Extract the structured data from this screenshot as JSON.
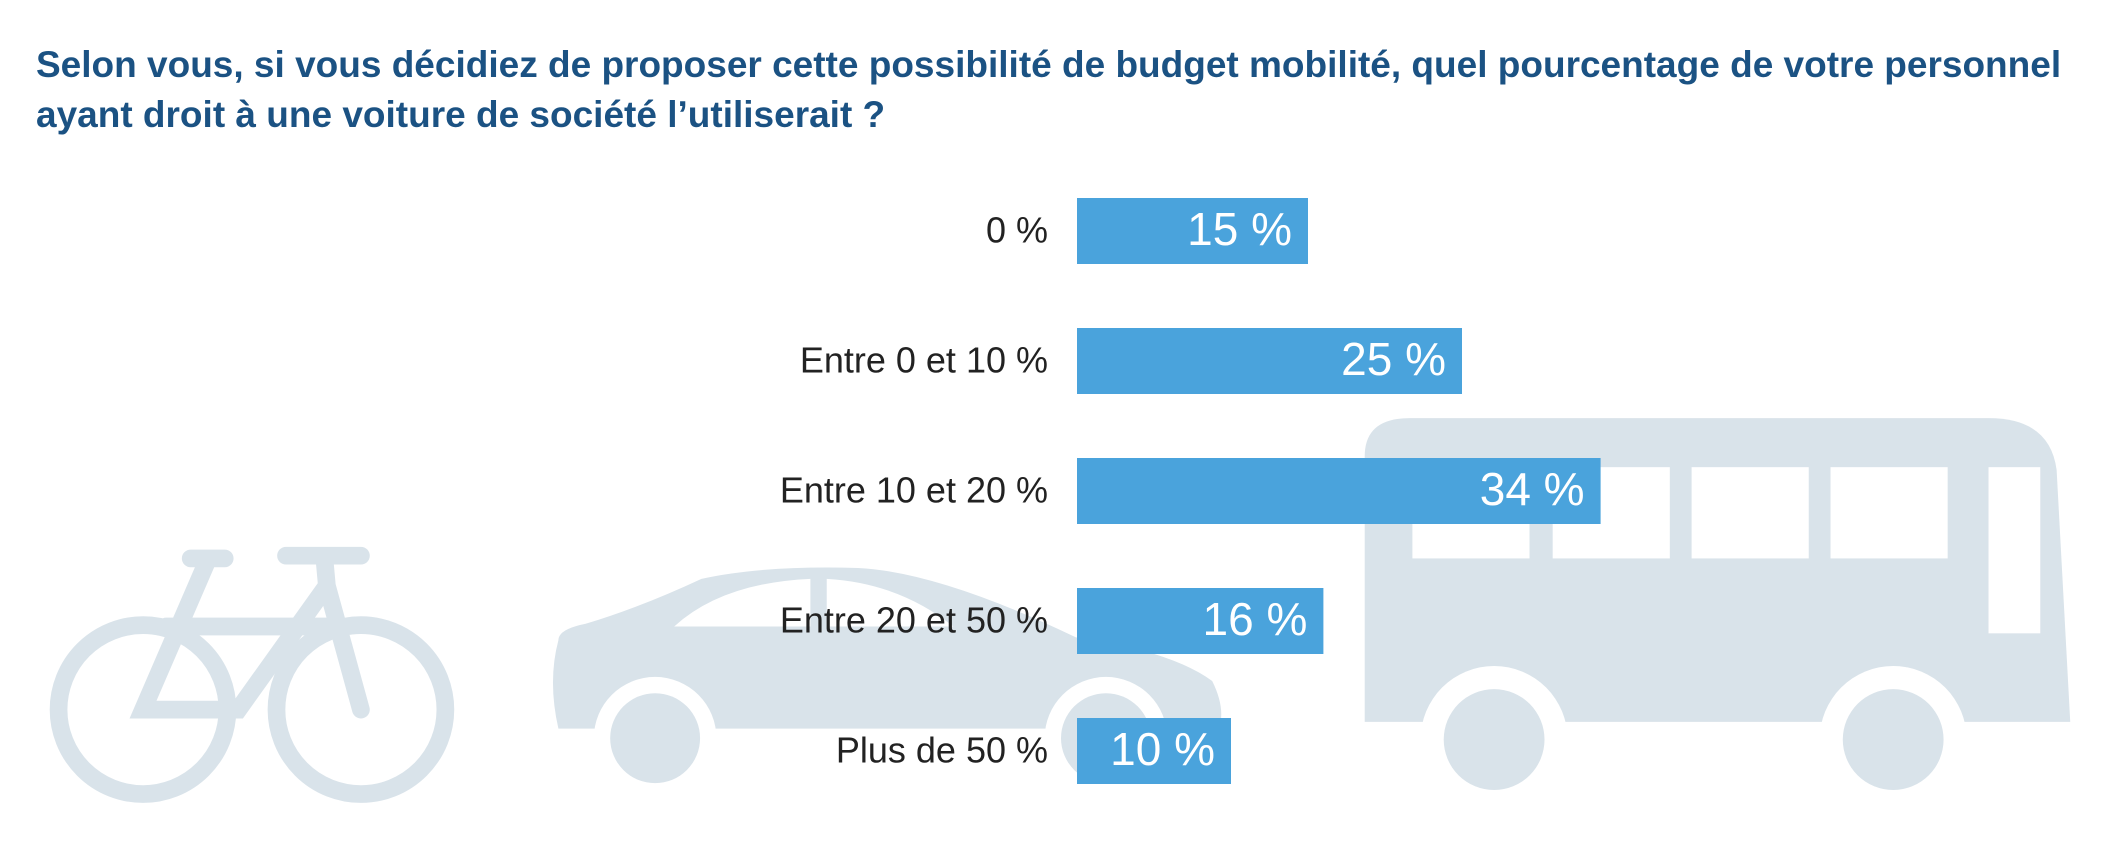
{
  "chart_data": {
    "type": "bar",
    "orientation": "horizontal",
    "title": "Selon vous, si vous décidiez de proposer cette possibilité de budget mobilité, quel pourcentage de votre personnel ayant droit à une voiture de société l’utiliserait ?",
    "categories": [
      "0 %",
      "Entre 0 et 10 %",
      "Entre 10 et 20 %",
      "Entre 20 et 50 %",
      "Plus de 50 %"
    ],
    "values": [
      15,
      25,
      34,
      16,
      10
    ],
    "value_labels": [
      "15 %",
      "25 %",
      "34 %",
      "16 %",
      "10 %"
    ],
    "color": "#4aa3dc"
  }
}
